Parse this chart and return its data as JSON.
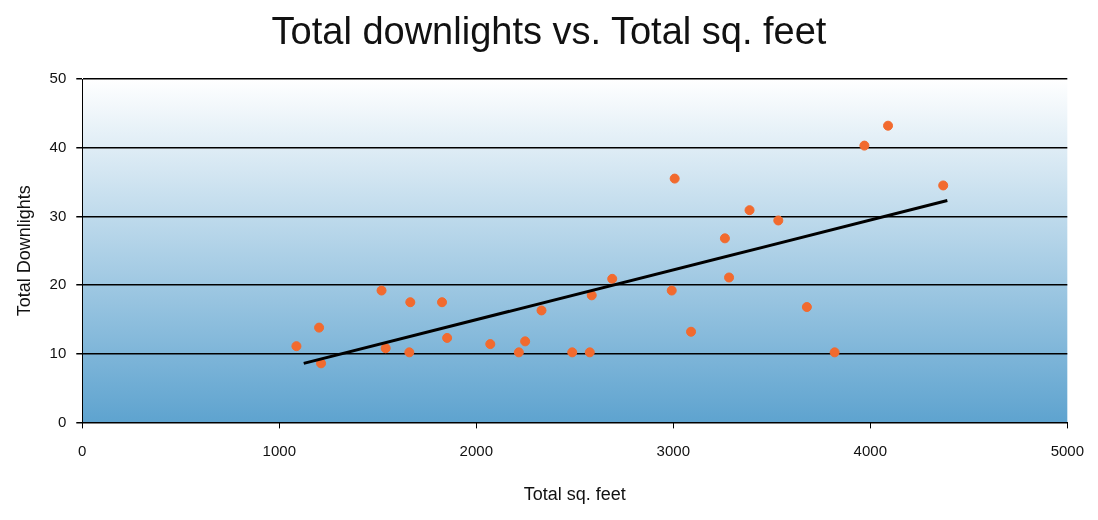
{
  "chart_data": {
    "type": "scatter",
    "title": "Total downlights vs. Total sq. feet",
    "xlabel": "Total sq. feet",
    "ylabel": "Total Downlights",
    "xlim": [
      0,
      5000
    ],
    "xticks": [
      0,
      1000,
      2000,
      3000,
      4000,
      5000
    ],
    "ylim": [
      0,
      50
    ],
    "yticks": [
      0,
      10,
      20,
      30,
      40,
      50
    ],
    "grid": "y",
    "legend": false,
    "series": [
      {
        "marker": "circle",
        "color": "#f26a2e",
        "x": [
          1087,
          1202,
          1212,
          1519,
          1540,
          1665,
          1660,
          1826,
          1852,
          2071,
          2216,
          2248,
          2331,
          2487,
          2576,
          2586,
          2690,
          2992,
          3007,
          3090,
          3262,
          3283,
          3387,
          3533,
          3678,
          3819,
          3970,
          4090,
          4370
        ],
        "values": [
          11.1,
          13.8,
          8.6,
          19.2,
          10.8,
          17.5,
          10.2,
          17.5,
          12.3,
          11.4,
          10.2,
          11.8,
          16.3,
          10.2,
          10.2,
          18.5,
          20.9,
          19.2,
          35.5,
          13.2,
          26.8,
          21.1,
          30.9,
          29.4,
          16.8,
          10.2,
          40.3,
          43.2,
          34.5
        ]
      },
      {
        "type": "line",
        "marker": "none",
        "color": "#000000",
        "x": [
          1124,
          4391
        ],
        "values": [
          8.6,
          32.3
        ]
      }
    ]
  }
}
